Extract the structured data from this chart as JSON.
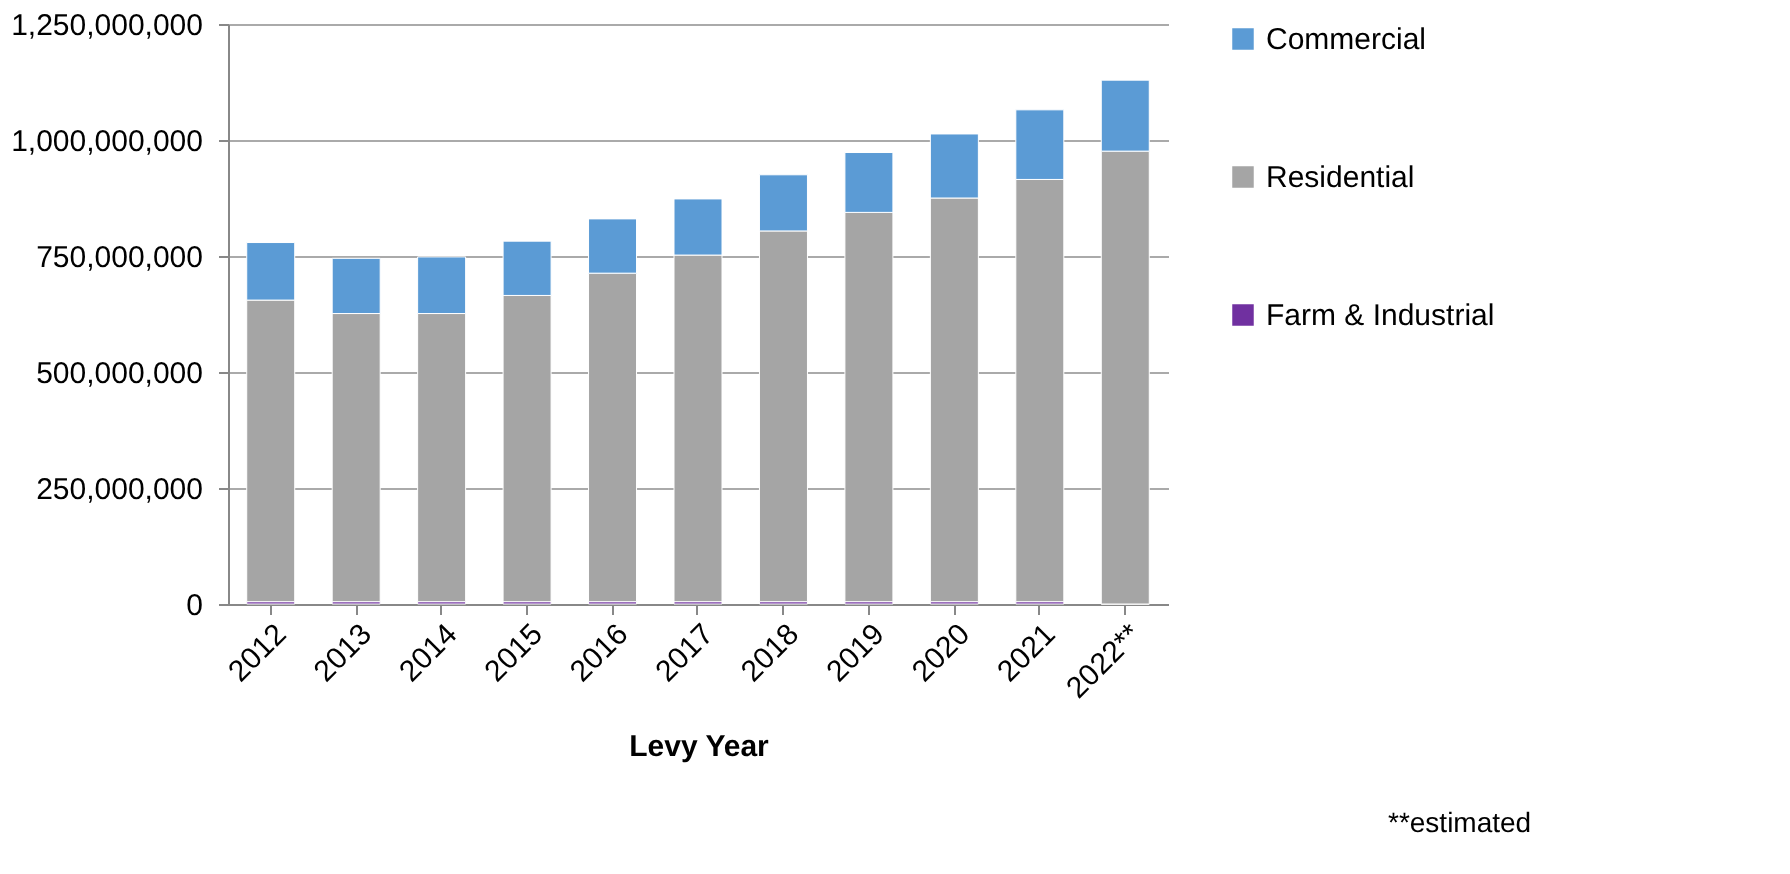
{
  "chart_data": {
    "type": "bar",
    "stacked": true,
    "xlabel": "Levy  Year",
    "categories": [
      "2012",
      "2013",
      "2014",
      "2015",
      "2016",
      "2017",
      "2018",
      "2019",
      "2020",
      "2021",
      "2022**"
    ],
    "series": [
      {
        "name": "Farm & Industrial",
        "color": "#7030a0",
        "values": [
          5000000,
          5000000,
          5000000,
          5000000,
          5000000,
          5000000,
          5000000,
          5000000,
          5000000,
          5000000,
          0
        ]
      },
      {
        "name": "Residential",
        "color": "#a5a5a5",
        "values": [
          650000000,
          621000000,
          621000000,
          660000000,
          708000000,
          747000000,
          799000000,
          839000000,
          870000000,
          910000000,
          976000000
        ]
      },
      {
        "name": "Commercial",
        "color": "#5b9bd5",
        "values": [
          124000000,
          119000000,
          122000000,
          117000000,
          117000000,
          121000000,
          121000000,
          129000000,
          138000000,
          150000000,
          153000000
        ]
      }
    ],
    "ylim": [
      0,
      1250000000
    ],
    "yticks": [
      0,
      {
        "value": 250000000,
        "label": "250,000,000"
      },
      {
        "value": 500000000,
        "label": "500,000,000"
      },
      {
        "value": 750000000,
        "label": "750,000,000"
      },
      {
        "value": 1000000000,
        "label": "1,000,000,000"
      },
      {
        "value": 1250000000,
        "label": "1,250,000,000"
      }
    ],
    "grid": "y",
    "legend": "right",
    "annotations": [
      "**estimated"
    ]
  }
}
